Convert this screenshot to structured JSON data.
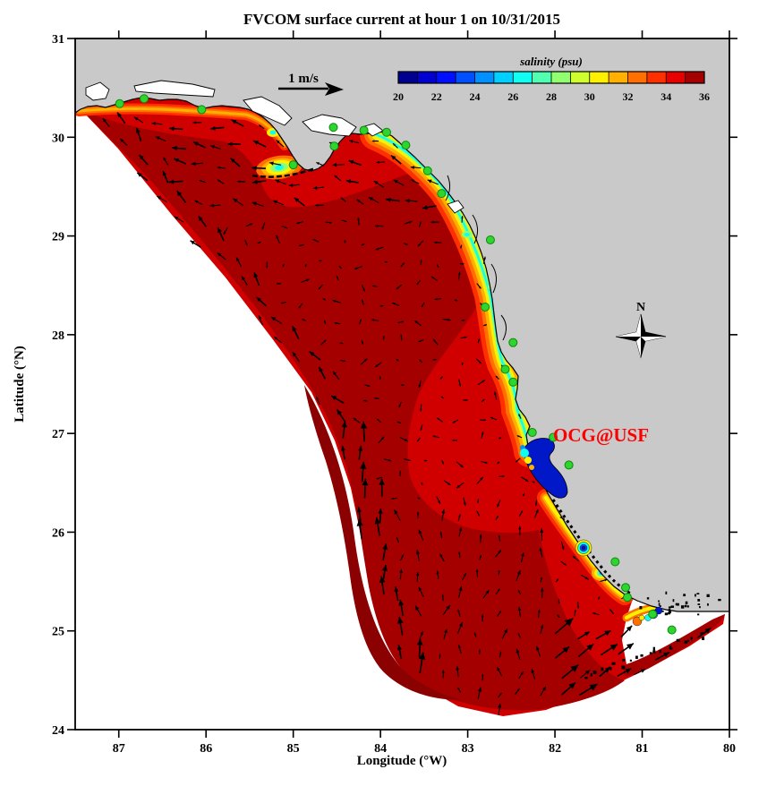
{
  "figure": {
    "background_color": "#FFFFFF",
    "land_color": "#C9C9C9",
    "coastline_color": "#000000"
  },
  "chart_data": {
    "type": "heatmap",
    "title": "FVCOM surface current at hour 1 on 10/31/2015",
    "xlabel": "Longitude (°W)",
    "ylabel": "Latitude (°N)",
    "xlim": [
      87.5,
      80
    ],
    "ylim": [
      24,
      31
    ],
    "x_ticks": [
      87,
      86,
      85,
      84,
      83,
      82,
      81,
      80
    ],
    "y_ticks": [
      31,
      30,
      29,
      28,
      27,
      26,
      25,
      24
    ],
    "grid": false,
    "colorbar": {
      "label": "salinity (psu)",
      "min": 20,
      "max": 36,
      "tick_values": [
        20,
        22,
        24,
        26,
        28,
        30,
        32,
        34,
        36
      ],
      "colors": [
        "#000090",
        "#0000D0",
        "#0010FF",
        "#0050FF",
        "#0090FF",
        "#00D0FF",
        "#10FFF0",
        "#50FFB0",
        "#90FF70",
        "#D0FF30",
        "#FFF000",
        "#FFB000",
        "#FF7000",
        "#FF3000",
        "#E80000",
        "#A40000"
      ]
    },
    "vector_field": {
      "reference_label": "1 m/s",
      "arrow_color": "#000000",
      "description": "Surface current vectors: weak variable flow over the mid shelf, strong northward flow along the western open boundary, strong northeastward Florida Current along the Keys arc, westward drift along the Panhandle coast"
    },
    "salinity_field": {
      "offshore_psu": "34-36",
      "coastal_band_psu": "26-34",
      "bay_psu": "20-24",
      "colors": {
        "offshore_dark": "#A40000",
        "offshore_darker": "#8B0000",
        "shelf_red": "#D10000"
      },
      "low_salinity_features": [
        "Apalachicola Bay plume",
        "Big Bend coastal band",
        "Tampa Bay",
        "Charlotte Harbor",
        "Florida Bay / Keys"
      ]
    },
    "stations": {
      "marker_color": "#2ED52E",
      "marker_edge_color": "#0B8A0B",
      "points_lon_lat": [
        [
          86.99,
          30.34
        ],
        [
          86.71,
          30.39
        ],
        [
          86.05,
          30.28
        ],
        [
          85.0,
          29.72
        ],
        [
          84.54,
          30.1
        ],
        [
          84.53,
          29.91
        ],
        [
          84.19,
          30.07
        ],
        [
          83.93,
          30.05
        ],
        [
          83.71,
          29.92
        ],
        [
          83.46,
          29.66
        ],
        [
          83.3,
          29.43
        ],
        [
          82.74,
          28.96
        ],
        [
          82.8,
          28.28
        ],
        [
          82.48,
          27.92
        ],
        [
          82.57,
          27.65
        ],
        [
          82.48,
          27.52
        ],
        [
          82.26,
          27.01
        ],
        [
          82.02,
          26.96
        ],
        [
          81.84,
          26.68
        ],
        [
          81.31,
          25.7
        ],
        [
          81.19,
          25.44
        ],
        [
          81.17,
          25.34
        ],
        [
          80.88,
          25.17
        ],
        [
          80.66,
          25.01
        ]
      ]
    },
    "annotations": {
      "watermark": {
        "text": "OCG@USF",
        "color": "#FF0000",
        "lon": 82.02,
        "lat": 26.93
      },
      "compass_label": "N"
    }
  }
}
